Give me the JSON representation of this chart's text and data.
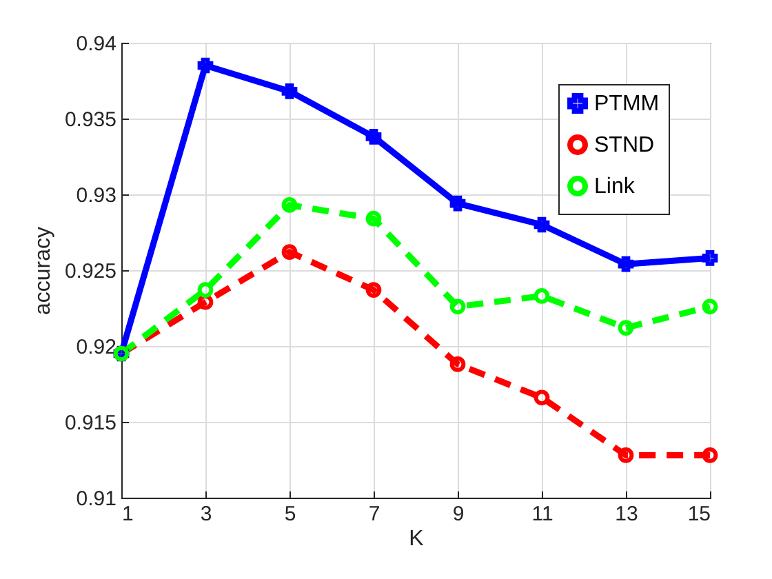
{
  "chart_data": {
    "type": "line",
    "xlabel": "K",
    "ylabel": "accuracy",
    "x": [
      1,
      3,
      5,
      7,
      9,
      11,
      13,
      15
    ],
    "xlim": [
      1,
      15
    ],
    "xticks": [
      1,
      3,
      5,
      7,
      9,
      11,
      13,
      15
    ],
    "ylim": [
      0.91,
      0.94
    ],
    "yticks": [
      0.91,
      0.915,
      0.92,
      0.925,
      0.93,
      0.935,
      0.94
    ],
    "grid": true,
    "legend": "top right",
    "series": [
      {
        "name": "PTMM",
        "color": "#0000ff",
        "marker": "cross",
        "line_style": "solid",
        "values": [
          0.9195,
          0.9385,
          0.9368,
          0.9338,
          0.9294,
          0.928,
          0.9254,
          0.9258
        ]
      },
      {
        "name": "STND",
        "color": "#ff0000",
        "marker": "circle",
        "line_style": "dashed",
        "values": [
          0.9195,
          0.9229,
          0.9262,
          0.9237,
          0.9188,
          0.9166,
          0.9128,
          0.9128
        ]
      },
      {
        "name": "Link",
        "color": "#00ff00",
        "marker": "circle",
        "line_style": "dashed",
        "values": [
          0.9195,
          0.9237,
          0.9293,
          0.9284,
          0.9226,
          0.9233,
          0.9212,
          0.9226
        ]
      }
    ]
  }
}
